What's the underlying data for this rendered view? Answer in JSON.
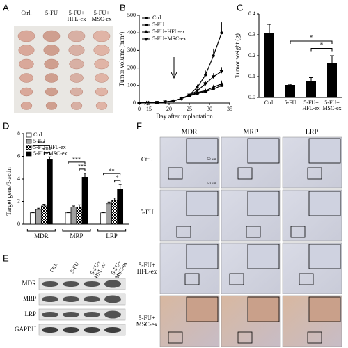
{
  "panel_labels": [
    "A",
    "B",
    "C",
    "D",
    "E",
    "F"
  ],
  "panel_a": {
    "groups": [
      "Ctrl.",
      "5-FU",
      "5-FU+ HFL-ex",
      "5-FU+ MSC-ex"
    ]
  },
  "chart_data": [
    {
      "type": "line",
      "x_label": "Day after implantation",
      "y_label": "Tumor volume (mm³)",
      "annotation": "↓",
      "x": [
        0,
        17,
        19,
        21,
        23,
        25,
        27,
        29,
        31,
        33
      ],
      "xlim": [
        0,
        35
      ],
      "xticks": [
        0,
        15,
        20,
        25,
        30,
        35
      ],
      "axis_break": true,
      "ylim": [
        0,
        500
      ],
      "yticks": [
        0,
        100,
        200,
        300,
        400,
        500
      ],
      "legend": "upper left",
      "series": [
        {
          "name": "Ctrl.",
          "color": "#000000",
          "marker": "circle",
          "values": [
            0,
            3,
            6,
            12,
            25,
            45,
            90,
            160,
            270,
            400
          ],
          "errors": [
            0,
            1,
            2,
            3,
            5,
            8,
            15,
            25,
            40,
            60
          ]
        },
        {
          "name": "5-FU",
          "color": "#000000",
          "marker": "square",
          "values": [
            0,
            3,
            6,
            12,
            25,
            40,
            55,
            65,
            80,
            100
          ],
          "errors": [
            0,
            1,
            2,
            3,
            4,
            6,
            8,
            10,
            12,
            15
          ]
        },
        {
          "name": "5-FU+HFL-ex",
          "color": "#000000",
          "marker": "triangle-up",
          "values": [
            0,
            3,
            6,
            12,
            25,
            42,
            60,
            70,
            90,
            110
          ],
          "errors": [
            0,
            1,
            2,
            3,
            4,
            6,
            8,
            10,
            14,
            18
          ]
        },
        {
          "name": "5-FU+MSC-ex",
          "color": "#000000",
          "marker": "triangle-down",
          "values": [
            0,
            3,
            6,
            12,
            25,
            45,
            70,
            110,
            150,
            180
          ],
          "errors": [
            0,
            1,
            2,
            3,
            5,
            7,
            10,
            15,
            20,
            25
          ]
        }
      ]
    },
    {
      "type": "bar",
      "y_label": "Tumor weight (g)",
      "categories": [
        "Ctrl.",
        "5-FU",
        "5-FU+ HFL-ex",
        "5-FU+ MSC-ex"
      ],
      "values": [
        0.31,
        0.06,
        0.08,
        0.165
      ],
      "errors": [
        0.04,
        0.003,
        0.015,
        0.035
      ],
      "color": "#000000",
      "ylim": [
        0,
        0.4
      ],
      "yticks": [
        {
          "value": 0,
          "label": "0.0"
        },
        0.1,
        0.2,
        0.3,
        0.4
      ],
      "annotations": [
        "*",
        "*"
      ]
    },
    {
      "type": "grouped-bar",
      "y_label": "Target gene/β-actin",
      "categories": [
        "MDR",
        "MRP",
        "LRP"
      ],
      "ylim": [
        0,
        8
      ],
      "yticks": [
        0,
        2,
        4,
        6,
        8
      ],
      "legend": "upper left",
      "series": [
        {
          "name": "Ctrl.",
          "color": "#ffffff",
          "values": [
            1.0,
            1.0,
            1.0
          ],
          "errors": [
            0.05,
            0.05,
            0.05
          ]
        },
        {
          "name": "5-FU",
          "color": "#a0a0a0",
          "values": [
            1.3,
            1.5,
            1.8
          ],
          "errors": [
            0.1,
            0.1,
            0.15
          ]
        },
        {
          "name": "5-FU+HFL-ex",
          "color": "#ffffff",
          "pattern": "checker",
          "values": [
            1.6,
            1.5,
            2.1
          ],
          "errors": [
            0.15,
            0.2,
            0.2
          ]
        },
        {
          "name": "5-FU+MSC-ex",
          "color": "#000000",
          "values": [
            5.7,
            4.1,
            3.1
          ],
          "errors": [
            0.25,
            0.4,
            0.4
          ]
        }
      ],
      "annotations": [
        "***",
        "***",
        "***",
        "***",
        "**",
        "*"
      ]
    }
  ],
  "panel_e": {
    "lanes": [
      "Ctrl.",
      "5-FU",
      "5-FU+ HFL-ex",
      "5-FU+ MSC-ex"
    ],
    "bands": [
      "MDR",
      "MRP",
      "LRP",
      "GAPDH"
    ]
  },
  "panel_f": {
    "columns": [
      "MDR",
      "MRP",
      "LRP"
    ],
    "rows": [
      "Ctrl.",
      "5-FU",
      "5-FU+ HFL-ex",
      "5-FU+ MSC-ex"
    ],
    "scale_bar": "50 μm"
  }
}
